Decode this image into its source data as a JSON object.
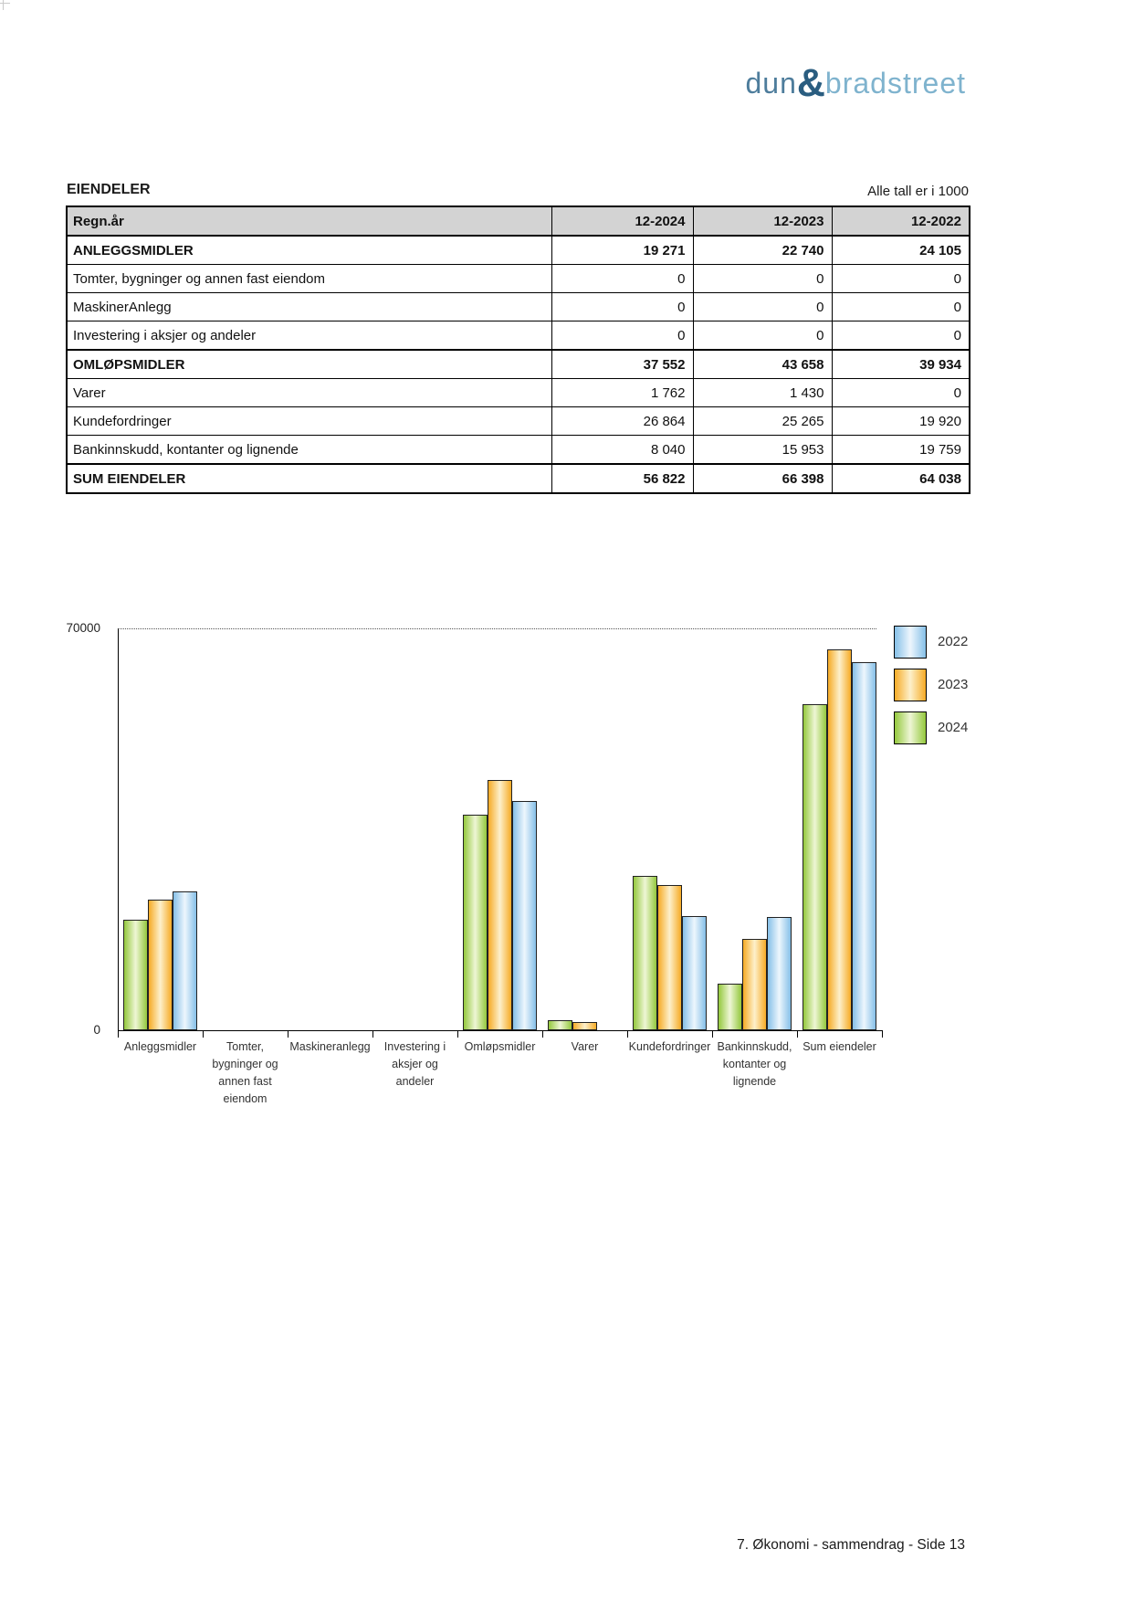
{
  "logo": {
    "dun": "dun",
    "amp": "&",
    "bradstreet": "bradstreet"
  },
  "colors": {
    "logo_dun": "#4e7d9c",
    "logo_amp": "#2a5d80",
    "logo_bradstreet": "#7fb3ce",
    "table_header_bg": "#d3d3d3"
  },
  "table": {
    "title": "EIENDELER",
    "unit_note": "Alle tall er i 1000",
    "header": [
      "Regn.år",
      "12-2024",
      "12-2023",
      "12-2022"
    ],
    "rows": [
      {
        "label": "ANLEGGSMIDLER",
        "values": [
          "19 271",
          "22 740",
          "24 105"
        ],
        "bold": true
      },
      {
        "label": "Tomter, bygninger og annen fast eiendom",
        "values": [
          "0",
          "0",
          "0"
        ],
        "bold": false
      },
      {
        "label": "MaskinerAnlegg",
        "values": [
          "0",
          "0",
          "0"
        ],
        "bold": false
      },
      {
        "label": "Investering i aksjer og andeler",
        "values": [
          "0",
          "0",
          "0"
        ],
        "bold": false
      },
      {
        "label": "OMLØPSMIDLER",
        "values": [
          "37 552",
          "43 658",
          "39 934"
        ],
        "bold": true
      },
      {
        "label": "Varer",
        "values": [
          "1 762",
          "1 430",
          "0"
        ],
        "bold": false
      },
      {
        "label": "Kundefordringer",
        "values": [
          "26 864",
          "25 265",
          "19 920"
        ],
        "bold": false
      },
      {
        "label": "Bankinnskudd, kontanter og lignende",
        "values": [
          "8 040",
          "15 953",
          "19 759"
        ],
        "bold": false
      },
      {
        "label": "SUM EIENDELER",
        "values": [
          "56 822",
          "66 398",
          "64 038"
        ],
        "bold": true
      }
    ]
  },
  "chart_data": {
    "type": "bar",
    "title": "",
    "categories": [
      "Anleggsmidler",
      "Tomter, bygninger og annen fast eiendom",
      "Maskineranlegg",
      "Investering i aksjer og andeler",
      "Omløpsmidler",
      "Varer",
      "Kundefordringer",
      "Bankinnskudd, kontanter og lignende",
      "Sum eiendeler"
    ],
    "category_label_lines": [
      [
        "Anleggsmidler"
      ],
      [
        "Tomter,",
        "bygninger og",
        "annen fast",
        "eiendom"
      ],
      [
        "Maskineranlegg"
      ],
      [
        "Investering i",
        "aksjer og",
        "andeler"
      ],
      [
        "Omløpsmidler"
      ],
      [
        "Varer"
      ],
      [
        "Kundefordringer"
      ],
      [
        "Bankinnskudd,",
        "kontanter og",
        "lignende"
      ],
      [
        "Sum eiendeler"
      ]
    ],
    "series": [
      {
        "name": "2024",
        "values": [
          19271,
          0,
          0,
          0,
          37552,
          1762,
          26864,
          8040,
          56822
        ],
        "edge_color": "#94c83d",
        "mid_color": "#eef6d5"
      },
      {
        "name": "2023",
        "values": [
          22740,
          0,
          0,
          0,
          43658,
          1430,
          25265,
          15953,
          66398
        ],
        "edge_color": "#f6ab26",
        "mid_color": "#fdf0cb"
      },
      {
        "name": "2022",
        "values": [
          24105,
          0,
          0,
          0,
          39934,
          0,
          19920,
          19759,
          64038
        ],
        "edge_color": "#86c0e8",
        "mid_color": "#edf6fd"
      }
    ],
    "legend_order": [
      "2022",
      "2023",
      "2024"
    ],
    "legend_position": "right",
    "ylim": [
      0,
      70000
    ],
    "ytick_labels": [
      "0",
      "70000"
    ],
    "grid": "dotted line at 70000 only"
  },
  "footer": {
    "page_label": "7. Økonomi - sammendrag - Side 13"
  }
}
